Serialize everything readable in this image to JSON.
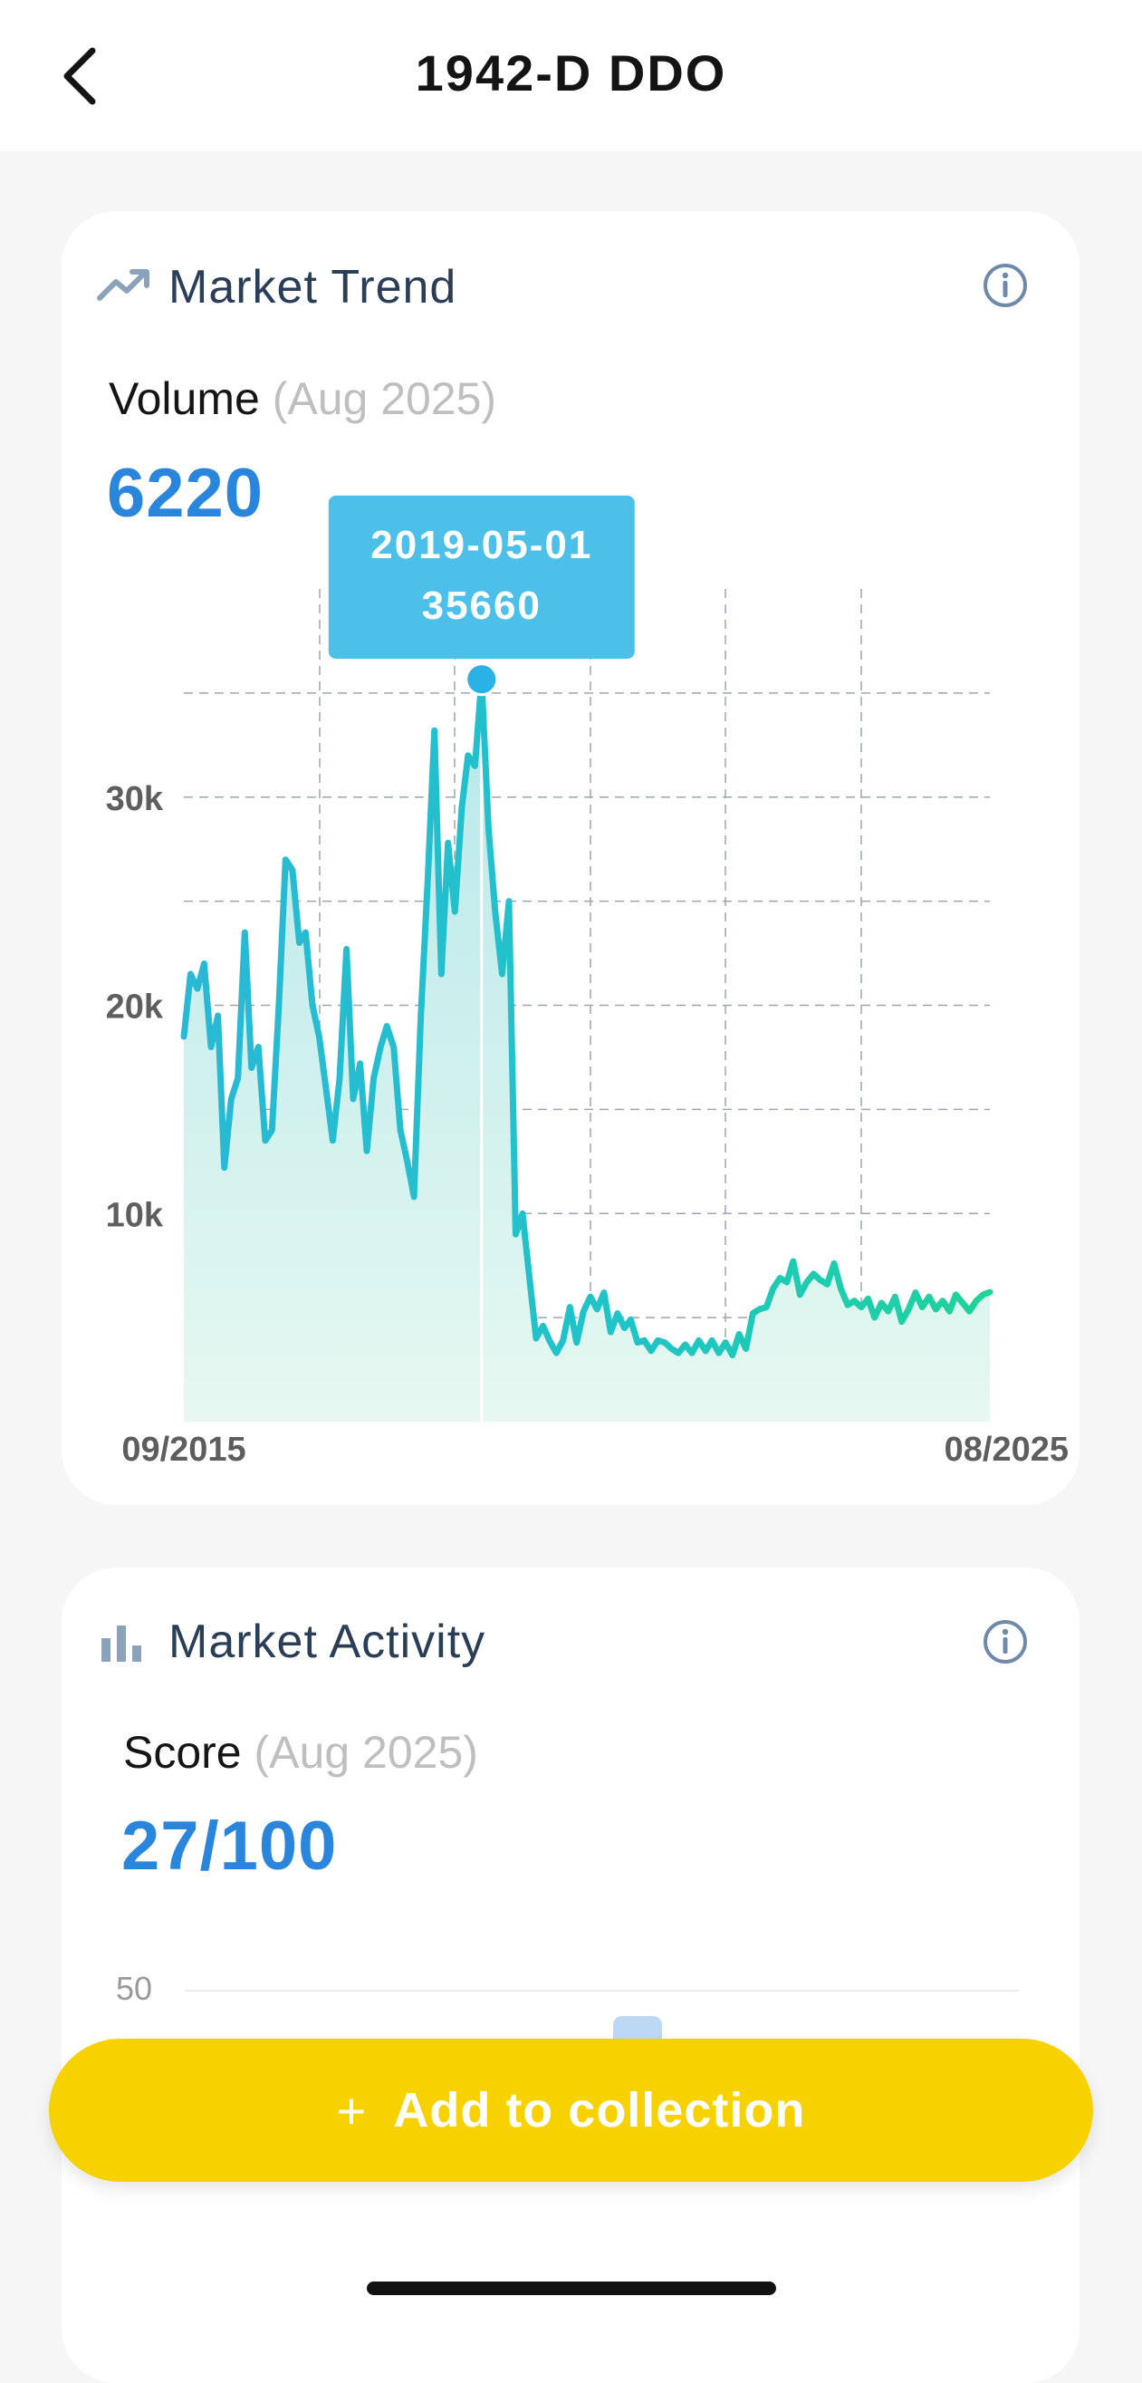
{
  "header": {
    "title": "1942-D DDO"
  },
  "market_trend": {
    "title": "Market Trend",
    "metric_label": "Volume",
    "metric_period": "(Aug 2025)",
    "metric_value": "6220",
    "tooltip": {
      "date": "2019-05-01",
      "value": "35660"
    },
    "icon": "trend-up-icon",
    "info_icon": "info-icon"
  },
  "market_activity": {
    "title": "Market Activity",
    "metric_label": "Score",
    "metric_period": "(Aug 2025)",
    "metric_value": "27/100",
    "axis_top_label": "50",
    "icon": "bar-chart-icon",
    "info_icon": "info-icon"
  },
  "cta": {
    "plus": "+",
    "label": "Add to collection"
  },
  "colors": {
    "accent_blue": "#2a86dc",
    "line_start": "#29b8d6",
    "line_end": "#1fd39a",
    "tooltip_bg": "#4cc0e8",
    "cta_yellow": "#f8d100"
  },
  "chart_data": {
    "type": "area",
    "title": "",
    "xlabel": "",
    "ylabel": "",
    "x_start": "09/2015",
    "x_end": "08/2025",
    "y_tick_labels": [
      "10k",
      "20k",
      "30k"
    ],
    "ylim": [
      0,
      40000
    ],
    "grid": true,
    "highlight": {
      "x": "2019-05-01",
      "y": 35660
    },
    "series": [
      {
        "points": [
          [
            "2015-09-01",
            18500
          ],
          [
            "2015-10-01",
            21500
          ],
          [
            "2015-11-01",
            20800
          ],
          [
            "2015-12-01",
            22000
          ],
          [
            "2016-01-01",
            18000
          ],
          [
            "2016-02-01",
            19500
          ],
          [
            "2016-03-01",
            12200
          ],
          [
            "2016-04-01",
            15500
          ],
          [
            "2016-05-01",
            16500
          ],
          [
            "2016-06-01",
            23500
          ],
          [
            "2016-07-01",
            17000
          ],
          [
            "2016-08-01",
            18000
          ],
          [
            "2016-09-01",
            13500
          ],
          [
            "2016-10-01",
            14000
          ],
          [
            "2016-11-01",
            20000
          ],
          [
            "2016-12-01",
            27000
          ],
          [
            "2017-01-01",
            26500
          ],
          [
            "2017-02-01",
            23000
          ],
          [
            "2017-03-01",
            23500
          ],
          [
            "2017-04-01",
            20000
          ],
          [
            "2017-05-01",
            18500
          ],
          [
            "2017-06-01",
            16000
          ],
          [
            "2017-07-01",
            13500
          ],
          [
            "2017-08-01",
            16500
          ],
          [
            "2017-09-01",
            22700
          ],
          [
            "2017-10-01",
            15500
          ],
          [
            "2017-11-01",
            17200
          ],
          [
            "2017-12-01",
            13000
          ],
          [
            "2018-01-01",
            16500
          ],
          [
            "2018-02-01",
            18000
          ],
          [
            "2018-03-01",
            19000
          ],
          [
            "2018-04-01",
            18000
          ],
          [
            "2018-05-01",
            14000
          ],
          [
            "2018-06-01",
            12500
          ],
          [
            "2018-07-01",
            10800
          ],
          [
            "2018-08-01",
            19500
          ],
          [
            "2018-09-01",
            26000
          ],
          [
            "2018-10-01",
            33200
          ],
          [
            "2018-11-01",
            21500
          ],
          [
            "2018-12-01",
            27800
          ],
          [
            "2019-01-01",
            24500
          ],
          [
            "2019-02-01",
            29500
          ],
          [
            "2019-03-01",
            32000
          ],
          [
            "2019-04-01",
            31500
          ],
          [
            "2019-05-01",
            35660
          ],
          [
            "2019-06-01",
            28500
          ],
          [
            "2019-07-01",
            24500
          ],
          [
            "2019-08-01",
            21500
          ],
          [
            "2019-09-01",
            25000
          ],
          [
            "2019-10-01",
            9000
          ],
          [
            "2019-11-01",
            10000
          ],
          [
            "2019-12-01",
            7000
          ],
          [
            "2020-01-01",
            4000
          ],
          [
            "2020-02-01",
            4600
          ],
          [
            "2020-03-01",
            3900
          ],
          [
            "2020-04-01",
            3300
          ],
          [
            "2020-05-01",
            3900
          ],
          [
            "2020-06-01",
            5500
          ],
          [
            "2020-07-01",
            3800
          ],
          [
            "2020-08-01",
            5300
          ],
          [
            "2020-09-01",
            6000
          ],
          [
            "2020-10-01",
            5400
          ],
          [
            "2020-11-01",
            6200
          ],
          [
            "2020-12-01",
            4300
          ],
          [
            "2021-01-01",
            5200
          ],
          [
            "2021-02-01",
            4500
          ],
          [
            "2021-03-01",
            4900
          ],
          [
            "2021-04-01",
            3800
          ],
          [
            "2021-05-01",
            3900
          ],
          [
            "2021-06-01",
            3400
          ],
          [
            "2021-07-01",
            3900
          ],
          [
            "2021-08-01",
            3800
          ],
          [
            "2021-09-01",
            3500
          ],
          [
            "2021-10-01",
            3300
          ],
          [
            "2021-11-01",
            3700
          ],
          [
            "2021-12-01",
            3300
          ],
          [
            "2022-01-01",
            3900
          ],
          [
            "2022-02-01",
            3400
          ],
          [
            "2022-03-01",
            3900
          ],
          [
            "2022-04-01",
            3300
          ],
          [
            "2022-05-01",
            3800
          ],
          [
            "2022-06-01",
            3200
          ],
          [
            "2022-07-01",
            4200
          ],
          [
            "2022-08-01",
            3500
          ],
          [
            "2022-09-01",
            5200
          ],
          [
            "2022-10-01",
            5400
          ],
          [
            "2022-11-01",
            5500
          ],
          [
            "2022-12-01",
            6400
          ],
          [
            "2023-01-01",
            6900
          ],
          [
            "2023-02-01",
            6700
          ],
          [
            "2023-03-01",
            7700
          ],
          [
            "2023-04-01",
            6100
          ],
          [
            "2023-05-01",
            6700
          ],
          [
            "2023-06-01",
            7100
          ],
          [
            "2023-07-01",
            6800
          ],
          [
            "2023-08-01",
            6600
          ],
          [
            "2023-09-01",
            7600
          ],
          [
            "2023-10-01",
            6400
          ],
          [
            "2023-11-01",
            5600
          ],
          [
            "2023-12-01",
            5800
          ],
          [
            "2024-01-01",
            5500
          ],
          [
            "2024-02-01",
            5900
          ],
          [
            "2024-03-01",
            5000
          ],
          [
            "2024-04-01",
            5700
          ],
          [
            "2024-05-01",
            5300
          ],
          [
            "2024-06-01",
            6000
          ],
          [
            "2024-07-01",
            4800
          ],
          [
            "2024-08-01",
            5400
          ],
          [
            "2024-09-01",
            6200
          ],
          [
            "2024-10-01",
            5500
          ],
          [
            "2024-11-01",
            6000
          ],
          [
            "2024-12-01",
            5400
          ],
          [
            "2025-01-01",
            5800
          ],
          [
            "2025-02-01",
            5300
          ],
          [
            "2025-03-01",
            6100
          ],
          [
            "2025-04-01",
            5700
          ],
          [
            "2025-05-01",
            5300
          ],
          [
            "2025-06-01",
            5800
          ],
          [
            "2025-07-01",
            6100
          ],
          [
            "2025-08-01",
            6220
          ]
        ]
      }
    ]
  }
}
